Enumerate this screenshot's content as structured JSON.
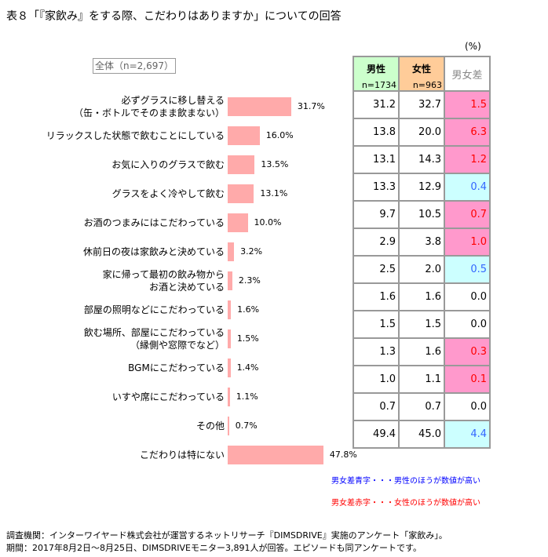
{
  "title": "表８「『家飲み』をする際、こだわりはありますか」についての回答",
  "unit": "(%)",
  "overall_label": "全体（n=2,697）",
  "colors": {
    "bar": "#ffaaaa",
    "male_header": "#ccffcc",
    "female_header": "#ffcc99",
    "female_higher": "#ff99cc",
    "male_higher": "#ccffff",
    "red_text": "#ff0000",
    "blue_text": "#3366ff"
  },
  "table_header": {
    "male": "男性",
    "male_n": "n=1734",
    "female": "女性",
    "female_n": "n=963",
    "diff": "男女差"
  },
  "chart_data": {
    "type": "bar",
    "orientation": "horizontal",
    "categories": [
      "必ずグラスに移し替える\n（缶・ボトルでそのまま飲まない）",
      "リラックスした状態で飲むことにしている",
      "お気に入りのグラスで飲む",
      "グラスをよく冷やして飲む",
      "お酒のつまみにはこだわっている",
      "休前日の夜は家飲みと決めている",
      "家に帰って最初の飲み物から\nお酒と決めている",
      "部屋の照明などにこだわっている",
      "飲む場所、部屋にこだわっている\n（縁側や窓際でなど）",
      "BGMにこだわっている",
      "いすや席にこだわっている",
      "その他",
      "こだわりは特にない"
    ],
    "values": [
      31.7,
      16.0,
      13.5,
      13.1,
      10.0,
      3.2,
      2.3,
      1.6,
      1.5,
      1.4,
      1.1,
      0.7,
      47.8
    ],
    "labels": [
      "31.7%",
      "16.0%",
      "13.5%",
      "13.1%",
      "10.0%",
      "3.2%",
      "2.3%",
      "1.6%",
      "1.5%",
      "1.4%",
      "1.1%",
      "0.7%",
      "47.8%"
    ],
    "male": [
      "31.2",
      "13.8",
      "13.1",
      "13.3",
      "9.7",
      "2.9",
      "2.5",
      "1.6",
      "1.5",
      "1.3",
      "1.0",
      "0.7",
      "49.4"
    ],
    "female": [
      "32.7",
      "20.0",
      "14.3",
      "12.9",
      "10.5",
      "3.8",
      "2.0",
      "1.6",
      "1.5",
      "1.6",
      "1.1",
      "0.7",
      "45.0"
    ],
    "diff": [
      "1.5",
      "6.3",
      "1.2",
      "0.4",
      "0.7",
      "1.0",
      "0.5",
      "0.0",
      "0.0",
      "0.3",
      "0.1",
      "0.0",
      "4.4"
    ],
    "diff_higher": [
      "female",
      "female",
      "female",
      "male",
      "female",
      "female",
      "male",
      "none",
      "none",
      "female",
      "female",
      "none",
      "male"
    ]
  },
  "notes": {
    "blue": "男女差青字・・・男性のほうが数値が高い",
    "red": "男女差赤字・・・女性のほうが数値が高い"
  },
  "footer": [
    "調査機関：インターワイヤード株式会社が運営するネットリサーチ『DIMSDRIVE』実施のアンケート「家飲み」。",
    "期間：2017年8月2日～8月25日、DIMSDRIVEモニター3,891人が回答。エピソードも同アンケートです。"
  ]
}
